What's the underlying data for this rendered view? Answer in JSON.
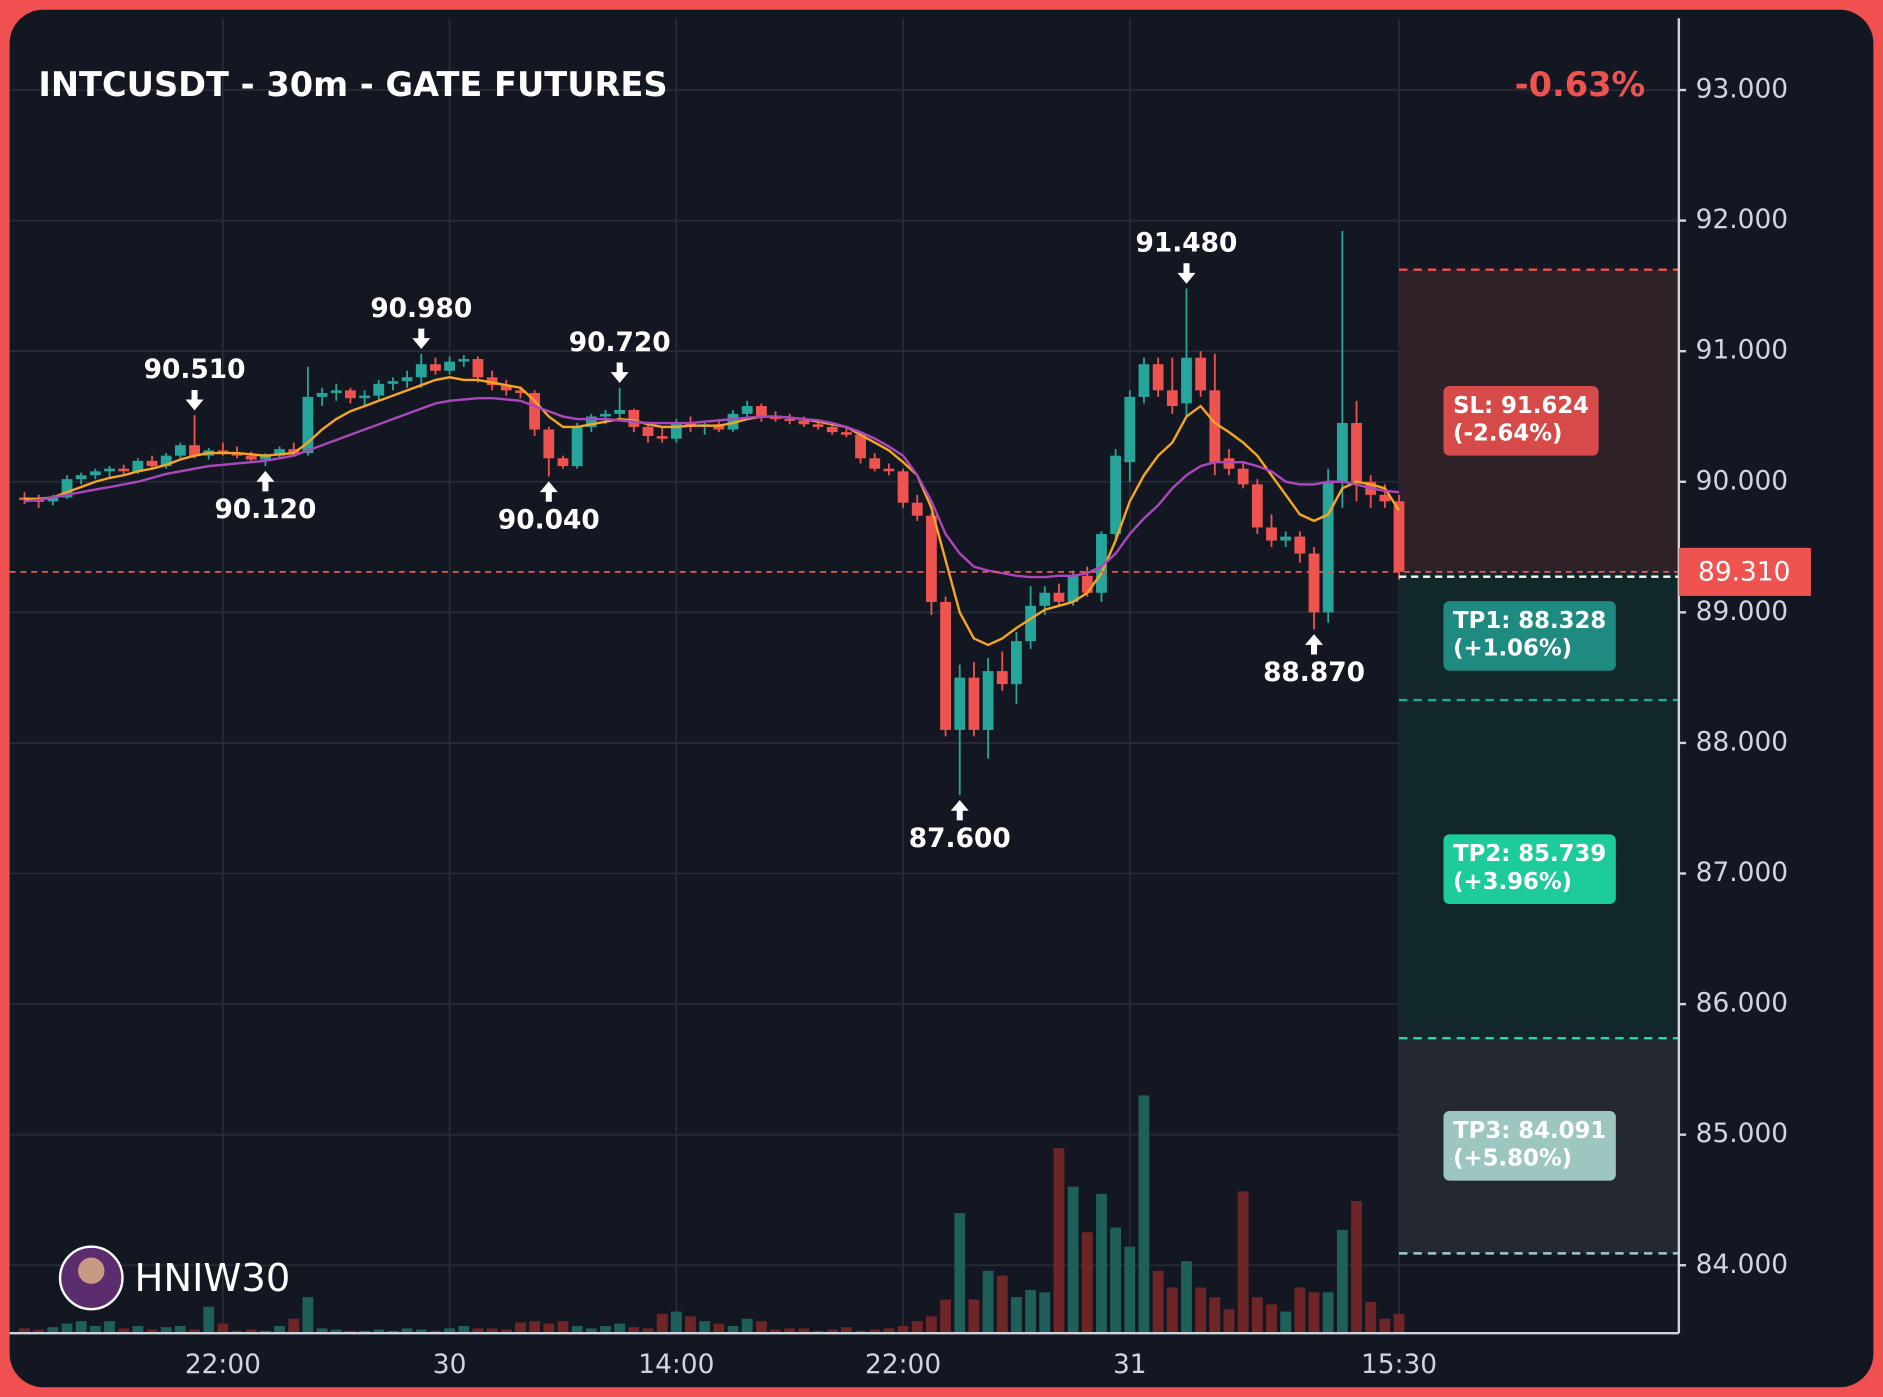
{
  "chart_data": {
    "type": "candlestick",
    "title": "INTCUSDT - 30m - GATE FUTURES",
    "change": "-0.63%",
    "change_color": "#ef5350",
    "categories": [
      null,
      null,
      null,
      null,
      null,
      null,
      null,
      null,
      null,
      null,
      null,
      null,
      null,
      null,
      "22:00",
      null,
      null,
      null,
      null,
      null,
      null,
      null,
      null,
      null,
      null,
      null,
      null,
      null,
      null,
      null,
      "30",
      null,
      null,
      null,
      null,
      null,
      null,
      null,
      null,
      null,
      null,
      null,
      null,
      null,
      null,
      null,
      "14:00",
      null,
      null,
      null,
      null,
      null,
      null,
      null,
      null,
      null,
      null,
      null,
      null,
      null,
      null,
      null,
      "22:00",
      null,
      null,
      null,
      null,
      null,
      null,
      null,
      null,
      null,
      null,
      null,
      null,
      null,
      null,
      null,
      "31",
      null,
      null,
      null,
      null,
      null,
      null,
      null,
      null,
      null,
      null,
      null,
      null,
      null,
      null,
      null,
      null,
      null,
      null,
      "15:30"
    ],
    "ohlc": [
      [
        89.88,
        89.92,
        89.83,
        89.86
      ],
      [
        89.86,
        89.9,
        89.8,
        89.85
      ],
      [
        89.85,
        89.9,
        89.82,
        89.88
      ],
      [
        89.88,
        90.05,
        89.87,
        90.02
      ],
      [
        90.02,
        90.07,
        89.98,
        90.05
      ],
      [
        90.05,
        90.1,
        90.02,
        90.08
      ],
      [
        90.08,
        90.12,
        90.04,
        90.1
      ],
      [
        90.1,
        90.13,
        90.06,
        90.08
      ],
      [
        90.08,
        90.18,
        90.06,
        90.16
      ],
      [
        90.16,
        90.2,
        90.1,
        90.12
      ],
      [
        90.12,
        90.22,
        90.1,
        90.2
      ],
      [
        90.2,
        90.3,
        90.18,
        90.28
      ],
      [
        90.28,
        90.51,
        90.18,
        90.2
      ],
      [
        90.2,
        90.26,
        90.17,
        90.24
      ],
      [
        90.24,
        90.3,
        90.2,
        90.22
      ],
      [
        90.22,
        90.27,
        90.18,
        90.2
      ],
      [
        90.2,
        90.23,
        90.15,
        90.17
      ],
      [
        90.17,
        90.22,
        90.12,
        90.2
      ],
      [
        90.2,
        90.27,
        90.17,
        90.25
      ],
      [
        90.25,
        90.3,
        90.2,
        90.22
      ],
      [
        90.22,
        90.88,
        90.2,
        90.65
      ],
      [
        90.65,
        90.72,
        90.58,
        90.68
      ],
      [
        90.68,
        90.75,
        90.62,
        90.7
      ],
      [
        90.7,
        90.72,
        90.6,
        90.64
      ],
      [
        90.64,
        90.7,
        90.58,
        90.66
      ],
      [
        90.66,
        90.78,
        90.62,
        90.75
      ],
      [
        90.75,
        90.8,
        90.7,
        90.77
      ],
      [
        90.77,
        90.85,
        90.72,
        90.8
      ],
      [
        90.8,
        90.98,
        90.72,
        90.9
      ],
      [
        90.9,
        90.95,
        90.82,
        90.85
      ],
      [
        90.85,
        90.96,
        90.82,
        90.92
      ],
      [
        90.92,
        90.97,
        90.88,
        90.94
      ],
      [
        90.94,
        90.96,
        90.76,
        90.8
      ],
      [
        90.8,
        90.85,
        90.7,
        90.74
      ],
      [
        90.74,
        90.78,
        90.66,
        90.7
      ],
      [
        90.7,
        90.73,
        90.64,
        90.68
      ],
      [
        90.68,
        90.7,
        90.35,
        90.4
      ],
      [
        90.4,
        90.42,
        90.04,
        90.18
      ],
      [
        90.18,
        90.2,
        90.1,
        90.12
      ],
      [
        90.12,
        90.45,
        90.1,
        90.42
      ],
      [
        90.42,
        90.52,
        90.38,
        90.5
      ],
      [
        90.5,
        90.55,
        90.44,
        90.52
      ],
      [
        90.52,
        90.72,
        90.48,
        90.55
      ],
      [
        90.55,
        90.56,
        90.38,
        90.42
      ],
      [
        90.42,
        90.46,
        90.3,
        90.35
      ],
      [
        90.35,
        90.42,
        90.3,
        90.33
      ],
      [
        90.33,
        90.48,
        90.3,
        90.45
      ],
      [
        90.45,
        90.5,
        90.38,
        90.42
      ],
      [
        90.42,
        90.47,
        90.36,
        90.44
      ],
      [
        90.44,
        90.48,
        90.38,
        90.4
      ],
      [
        90.4,
        90.55,
        90.38,
        90.52
      ],
      [
        90.52,
        90.62,
        90.48,
        90.58
      ],
      [
        90.58,
        90.6,
        90.46,
        90.5
      ],
      [
        90.5,
        90.54,
        90.46,
        90.48
      ],
      [
        90.48,
        90.52,
        90.44,
        90.47
      ],
      [
        90.47,
        90.5,
        90.42,
        90.44
      ],
      [
        90.44,
        90.48,
        90.4,
        90.42
      ],
      [
        90.42,
        90.45,
        90.36,
        90.38
      ],
      [
        90.38,
        90.42,
        90.34,
        90.36
      ],
      [
        90.36,
        90.38,
        90.14,
        90.18
      ],
      [
        90.18,
        90.22,
        90.08,
        90.1
      ],
      [
        90.1,
        90.14,
        90.05,
        90.08
      ],
      [
        90.08,
        90.1,
        89.8,
        89.84
      ],
      [
        89.84,
        89.9,
        89.7,
        89.74
      ],
      [
        89.74,
        89.76,
        88.98,
        89.08
      ],
      [
        89.08,
        89.12,
        88.05,
        88.1
      ],
      [
        88.1,
        88.6,
        87.6,
        88.5
      ],
      [
        88.5,
        88.62,
        88.05,
        88.1
      ],
      [
        88.1,
        88.65,
        87.88,
        88.55
      ],
      [
        88.55,
        88.7,
        88.4,
        88.45
      ],
      [
        88.45,
        88.85,
        88.3,
        88.78
      ],
      [
        88.78,
        89.2,
        88.72,
        89.05
      ],
      [
        89.05,
        89.2,
        88.98,
        89.15
      ],
      [
        89.15,
        89.22,
        89.05,
        89.08
      ],
      [
        89.08,
        89.32,
        89.05,
        89.28
      ],
      [
        89.28,
        89.35,
        89.12,
        89.15
      ],
      [
        89.15,
        89.62,
        89.08,
        89.6
      ],
      [
        89.6,
        90.25,
        89.55,
        90.2
      ],
      [
        90.15,
        90.7,
        90.0,
        90.65
      ],
      [
        90.65,
        90.95,
        90.6,
        90.9
      ],
      [
        90.9,
        90.95,
        90.65,
        90.7
      ],
      [
        90.7,
        90.95,
        90.52,
        90.58
      ],
      [
        90.6,
        91.48,
        90.5,
        90.95
      ],
      [
        90.95,
        91.0,
        90.65,
        90.7
      ],
      [
        90.7,
        90.98,
        90.05,
        90.15
      ],
      [
        90.18,
        90.25,
        90.05,
        90.1
      ],
      [
        90.1,
        90.15,
        89.95,
        89.98
      ],
      [
        89.98,
        90.02,
        89.6,
        89.65
      ],
      [
        89.65,
        89.75,
        89.5,
        89.55
      ],
      [
        89.55,
        89.62,
        89.5,
        89.58
      ],
      [
        89.58,
        89.62,
        89.38,
        89.45
      ],
      [
        89.45,
        89.5,
        88.87,
        89.0
      ],
      [
        89.0,
        90.1,
        88.92,
        90.0
      ],
      [
        90.0,
        91.92,
        89.8,
        90.45
      ],
      [
        90.45,
        90.62,
        89.85,
        90.0
      ],
      [
        90.0,
        90.05,
        89.8,
        89.9
      ],
      [
        89.9,
        89.98,
        89.8,
        89.85
      ],
      [
        89.85,
        89.9,
        89.25,
        89.31
      ]
    ],
    "up_color": "#26a69a",
    "down_color": "#ef5350",
    "volume": [
      4,
      3,
      5,
      8,
      10,
      6,
      10,
      4,
      6,
      3,
      5,
      6,
      3,
      22,
      8,
      2,
      3,
      2,
      6,
      12,
      30,
      4,
      3,
      2,
      2,
      3,
      2,
      4,
      3,
      2,
      4,
      6,
      4,
      4,
      3,
      9,
      10,
      8,
      10,
      6,
      4,
      6,
      8,
      5,
      4,
      16,
      18,
      14,
      10,
      8,
      6,
      12,
      10,
      3,
      4,
      4,
      2,
      3,
      5,
      2,
      3,
      4,
      6,
      10,
      14,
      28,
      100,
      28,
      52,
      48,
      30,
      36,
      34,
      154,
      122,
      84,
      116,
      88,
      72,
      198,
      52,
      38,
      60,
      38,
      30,
      20,
      118,
      30,
      24,
      18,
      38,
      34,
      34,
      86,
      110,
      26,
      12,
      16
    ],
    "volume_up_color": "#1f5f59",
    "volume_down_color": "#6e2528",
    "lines": [
      {
        "color": "#f5a623",
        "values": [
          89.87,
          89.87,
          89.88,
          89.92,
          89.96,
          90.0,
          90.03,
          90.05,
          90.08,
          90.1,
          90.13,
          90.17,
          90.2,
          90.22,
          90.22,
          90.22,
          90.21,
          90.2,
          90.21,
          90.22,
          90.3,
          90.4,
          90.48,
          90.54,
          90.58,
          90.62,
          90.66,
          90.7,
          90.74,
          90.78,
          90.8,
          90.78,
          90.78,
          90.76,
          90.74,
          90.72,
          90.62,
          90.5,
          90.42,
          90.42,
          90.44,
          90.46,
          90.48,
          90.47,
          90.44,
          90.42,
          90.42,
          90.43,
          90.43,
          90.43,
          90.45,
          90.48,
          90.5,
          90.5,
          90.49,
          90.48,
          90.46,
          90.44,
          90.42,
          90.36,
          90.3,
          90.24,
          90.15,
          90.05,
          89.8,
          89.4,
          89.0,
          88.8,
          88.75,
          88.8,
          88.88,
          88.95,
          89.02,
          89.05,
          89.08,
          89.15,
          89.3,
          89.55,
          89.85,
          90.05,
          90.2,
          90.3,
          90.5,
          90.58,
          90.45,
          90.38,
          90.3,
          90.2,
          90.05,
          89.9,
          89.75,
          89.7,
          89.75,
          89.95,
          90.0,
          89.98,
          89.95,
          89.78
        ]
      },
      {
        "color": "#ab47bc",
        "values": [
          89.85,
          89.86,
          89.88,
          89.9,
          89.92,
          89.94,
          89.96,
          89.98,
          90.0,
          90.03,
          90.06,
          90.08,
          90.1,
          90.12,
          90.13,
          90.14,
          90.15,
          90.16,
          90.18,
          90.2,
          90.24,
          90.28,
          90.32,
          90.36,
          90.4,
          90.44,
          90.48,
          90.52,
          90.56,
          90.6,
          90.62,
          90.63,
          90.64,
          90.64,
          90.63,
          90.62,
          90.58,
          90.54,
          90.5,
          90.48,
          90.48,
          90.48,
          90.47,
          90.46,
          90.45,
          90.45,
          90.45,
          90.45,
          90.46,
          90.47,
          90.48,
          90.49,
          90.5,
          90.5,
          90.49,
          90.48,
          90.47,
          90.45,
          90.42,
          90.38,
          90.33,
          90.27,
          90.2,
          90.05,
          89.85,
          89.6,
          89.45,
          89.35,
          89.32,
          89.3,
          89.28,
          89.27,
          89.27,
          89.28,
          89.28,
          89.3,
          89.35,
          89.45,
          89.6,
          89.72,
          89.82,
          89.95,
          90.05,
          90.12,
          90.15,
          90.15,
          90.15,
          90.12,
          90.08,
          90.0,
          89.98,
          89.98,
          90.0,
          90.0,
          89.98,
          89.95,
          89.93,
          89.92
        ]
      }
    ],
    "ylim": [
      83.48,
      93.55
    ],
    "yticks": [
      {
        "value": 84,
        "label": "84.000"
      },
      {
        "value": 85,
        "label": "85.000"
      },
      {
        "value": 86,
        "label": "86.000"
      },
      {
        "value": 87,
        "label": "87.000"
      },
      {
        "value": 88,
        "label": "88.000"
      },
      {
        "value": 89,
        "label": "89.000"
      },
      {
        "value": 90,
        "label": "90.000"
      },
      {
        "value": 91,
        "label": "91.000"
      },
      {
        "value": 92,
        "label": "92.000"
      },
      {
        "value": 93,
        "label": "93.000"
      }
    ],
    "grid": true,
    "last_price": {
      "value": 89.31,
      "label": "89.310",
      "color": "#ef5350"
    },
    "annotations": [
      {
        "candle": 12,
        "value": 90.51,
        "label": "90.510",
        "kind": "high"
      },
      {
        "candle": 17,
        "value": 90.12,
        "label": "90.120",
        "kind": "low"
      },
      {
        "candle": 28,
        "value": 90.98,
        "label": "90.980",
        "kind": "high"
      },
      {
        "candle": 37,
        "value": 90.04,
        "label": "90.040",
        "kind": "low"
      },
      {
        "candle": 42,
        "value": 90.72,
        "label": "90.720",
        "kind": "high"
      },
      {
        "candle": 66,
        "value": 87.6,
        "label": "87.600",
        "kind": "low"
      },
      {
        "candle": 82,
        "value": 91.48,
        "label": "91.480",
        "kind": "high"
      },
      {
        "candle": 91,
        "value": 88.87,
        "label": "88.870",
        "kind": "low"
      }
    ],
    "levels": [
      {
        "label": "SL: 91.624",
        "change": "(-2.64%)",
        "value": 91.624,
        "color": "#ef5350",
        "box_color": "#d64a4a"
      },
      {
        "label": "TP1: 88.328",
        "change": "(+1.06%)",
        "value": 88.328,
        "color": "#26a69a",
        "box_color": "#1f8a80"
      },
      {
        "label": "TP2: 85.739",
        "change": "(+3.96%)",
        "value": 85.739,
        "color": "#26d6a8",
        "box_color": "#1ecb9a"
      },
      {
        "label": "TP3: 84.091",
        "change": "(+5.80%)",
        "value": 84.091,
        "color": "#9fc9c4",
        "box_color": "#9dc6c1"
      }
    ],
    "watermark": "HNIW30"
  }
}
